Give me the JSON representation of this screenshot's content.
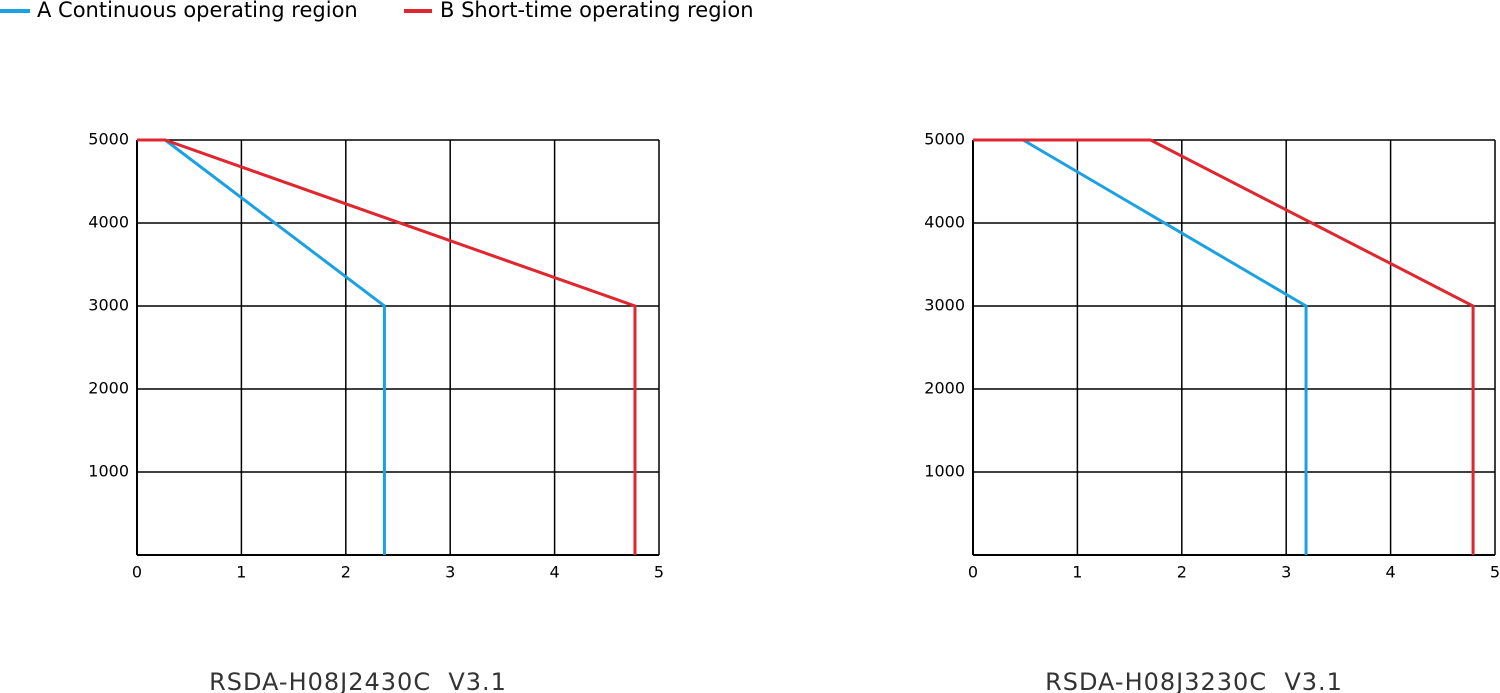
{
  "chart_data": [
    {
      "type": "line",
      "title": "RSDA-H08J2430C  V3.1",
      "xlim": [
        0,
        5
      ],
      "xticks": [
        0,
        1,
        2,
        3,
        4,
        5
      ],
      "ylim": [
        0,
        5000
      ],
      "yticks": [
        1000,
        2000,
        3000,
        4000,
        5000
      ],
      "grid": true,
      "series": [
        {
          "name": "A Continuous operating region",
          "color": "#1ba1e2",
          "x": [
            0.27,
            2.37,
            2.37
          ],
          "values": [
            5000,
            3000,
            0
          ]
        },
        {
          "name": "B Short-time operating region",
          "color": "#e0262e",
          "x": [
            0,
            0.27,
            4.77,
            4.77
          ],
          "values": [
            5000,
            5000,
            3000,
            0
          ]
        }
      ]
    },
    {
      "type": "line",
      "title": "RSDA-H08J3230C  V3.1",
      "xlim": [
        0,
        5
      ],
      "xticks": [
        0,
        1,
        2,
        3,
        4,
        5
      ],
      "ylim": [
        0,
        5000
      ],
      "yticks": [
        1000,
        2000,
        3000,
        4000,
        5000
      ],
      "grid": true,
      "series": [
        {
          "name": "A Continuous operating region",
          "color": "#1ba1e2",
          "x": [
            0.48,
            3.19,
            3.19
          ],
          "values": [
            5000,
            3000,
            0
          ]
        },
        {
          "name": "B Short-time operating region",
          "color": "#e0262e",
          "x": [
            0,
            1.7,
            4.79,
            4.79
          ],
          "values": [
            5000,
            5000,
            3000,
            0
          ]
        }
      ]
    }
  ]
}
